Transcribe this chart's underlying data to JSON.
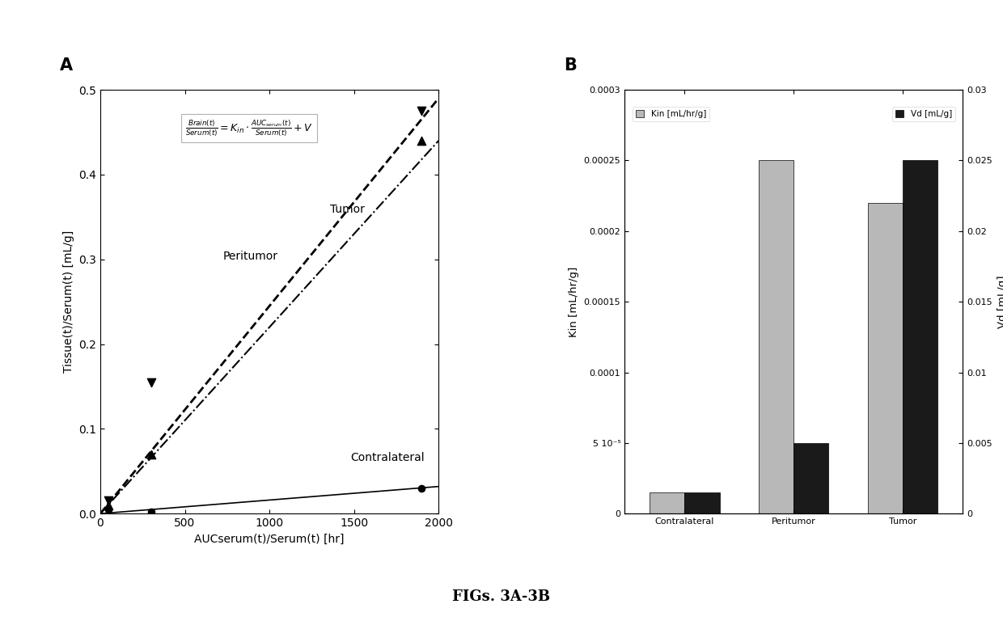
{
  "panel_A": {
    "title": "A",
    "xlabel": "AUCserum(t)/Serum(t) [hr]",
    "ylabel": "Tissue(t)/Serum(t) [mL/g]",
    "xlim": [
      0,
      2000
    ],
    "ylim": [
      0,
      0.5
    ],
    "xticks": [
      0,
      500,
      1000,
      1500,
      2000
    ],
    "yticks": [
      0,
      0.1,
      0.2,
      0.3,
      0.4,
      0.5
    ],
    "contralateral_scatter_x": [
      50,
      300,
      1900
    ],
    "contralateral_scatter_y": [
      0.005,
      0.002,
      0.03
    ],
    "contralateral_line_x": [
      0,
      2000
    ],
    "contralateral_line_y": [
      0.0,
      0.032
    ],
    "peritumor_scatter_x": [
      50,
      300,
      1900
    ],
    "peritumor_scatter_y": [
      0.01,
      0.07,
      0.44
    ],
    "peritumor_line_x": [
      0,
      2000
    ],
    "peritumor_line_y": [
      0.0,
      0.44
    ],
    "tumor_scatter_x": [
      50,
      300,
      1900
    ],
    "tumor_scatter_y": [
      0.015,
      0.155,
      0.475
    ],
    "tumor_line_x": [
      0,
      2000
    ],
    "tumor_line_y": [
      0.0,
      0.49
    ],
    "label_contralateral": "Contralateral",
    "label_peritumor": "Peritumor",
    "label_tumor": "Tumor"
  },
  "panel_B": {
    "title": "B",
    "ylabel_left": "Kin [mL/hr/g]",
    "ylabel_right": "Vd [mL/g]",
    "ylim_left": [
      0,
      0.0003
    ],
    "ylim_right": [
      0,
      0.03
    ],
    "yticks_left": [
      0,
      5e-05,
      0.0001,
      0.00015,
      0.0002,
      0.00025,
      0.0003
    ],
    "ytick_labels_left": [
      "0",
      "5 10⁻⁵",
      "0.0001",
      "0.00015",
      "0.0002",
      "0.00025",
      "0.0003"
    ],
    "yticks_right": [
      0,
      0.005,
      0.01,
      0.015,
      0.02,
      0.025,
      0.03
    ],
    "ytick_labels_right": [
      "0",
      "0.005",
      "0.01",
      "0.015",
      "0.02",
      "0.025",
      "0.03"
    ],
    "categories": [
      "Contralateral",
      "Peritumor",
      "Tumor"
    ],
    "kin_values": [
      1.5e-05,
      0.00025,
      0.00022
    ],
    "vd_values": [
      0.0015,
      0.005,
      0.025
    ],
    "kin_color": "#b8b8b8",
    "vd_color": "#1a1a1a",
    "legend_kin": "Kin [mL/hr/g]",
    "legend_vd": "Vd [mL/g]"
  },
  "figure_label": "FIGs. 3A-3B",
  "background_color": "#ffffff",
  "page_bg": "#f0f0f0"
}
